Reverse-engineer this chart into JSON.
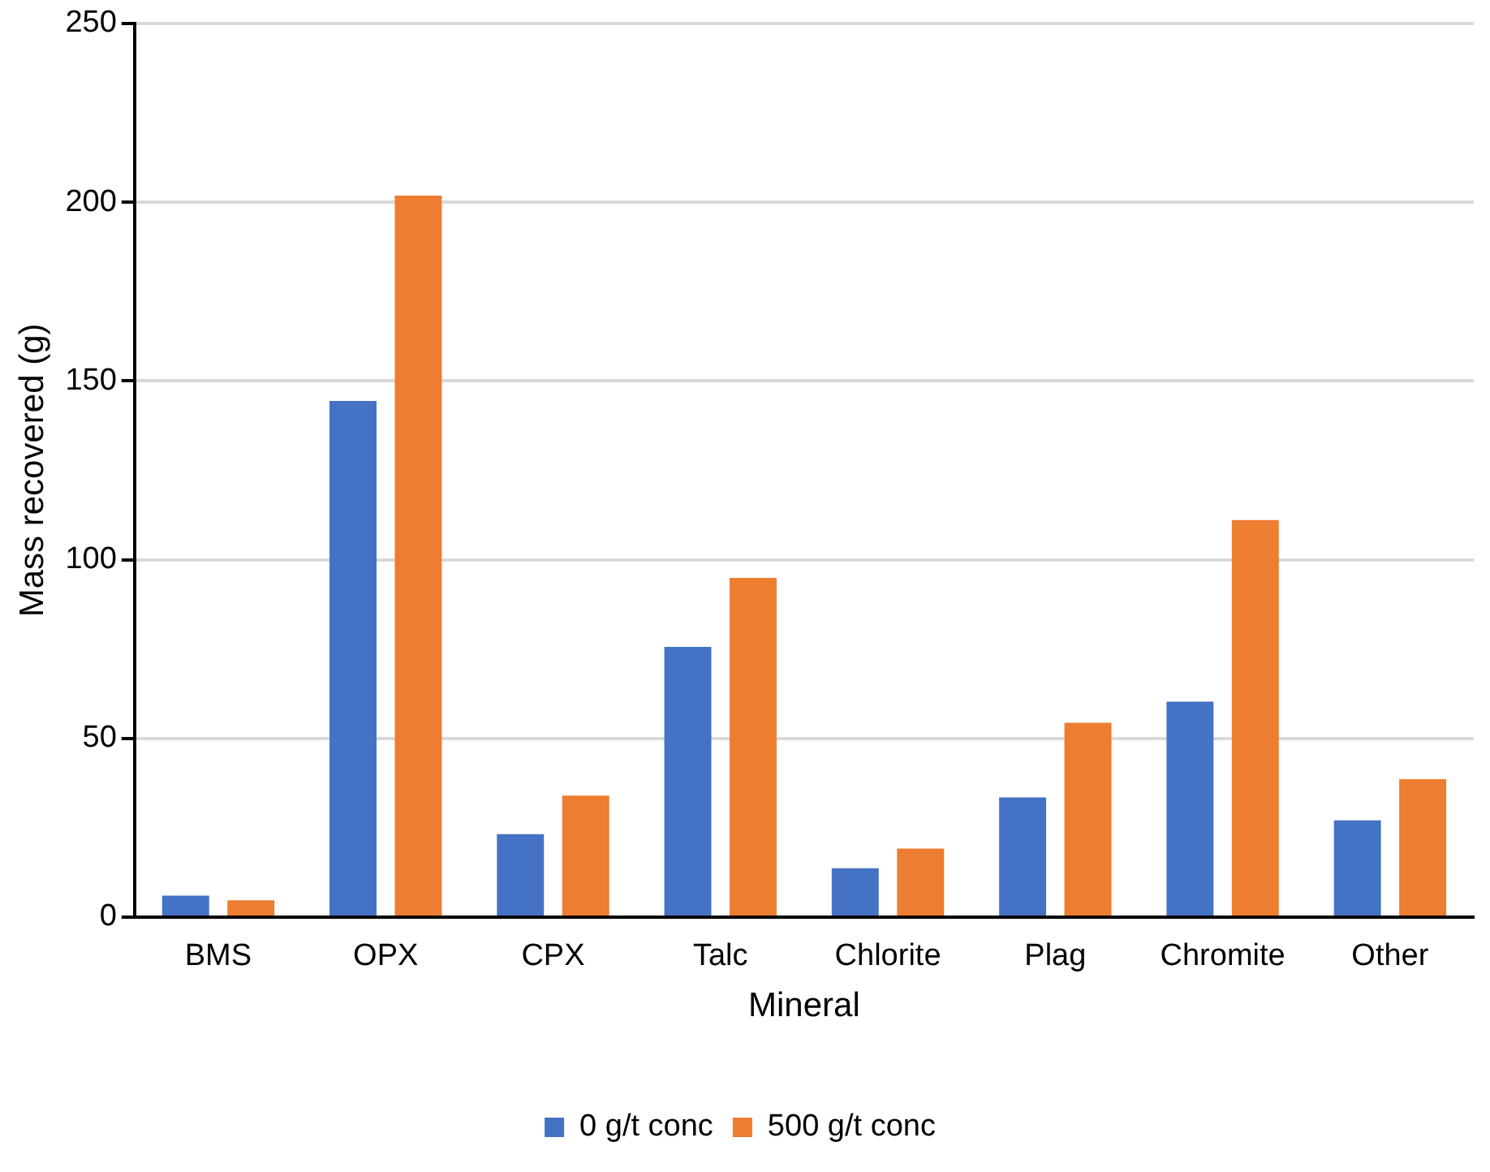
{
  "chart_data": {
    "type": "bar",
    "xlabel": "Mineral",
    "ylabel": "Mass recovered (g)",
    "categories": [
      "BMS",
      "OPX",
      "CPX",
      "Talc",
      "Chlorite",
      "Plag",
      "Chromite",
      "Other"
    ],
    "series": [
      {
        "name": "0 g/t conc",
        "color": "#4472c4",
        "values": [
          6.0,
          144.4,
          23.2,
          75.6,
          13.7,
          33.5,
          60.3,
          27.1
        ]
      },
      {
        "name": "500 g/t conc",
        "color": "#ed7d31",
        "values": [
          4.7,
          201.8,
          34.0,
          94.9,
          19.2,
          54.4,
          111.1,
          38.6
        ]
      }
    ],
    "ylim": [
      0,
      250
    ],
    "yticks": [
      0,
      50,
      100,
      150,
      200,
      250
    ],
    "grid": "y",
    "legend": "bottom"
  }
}
